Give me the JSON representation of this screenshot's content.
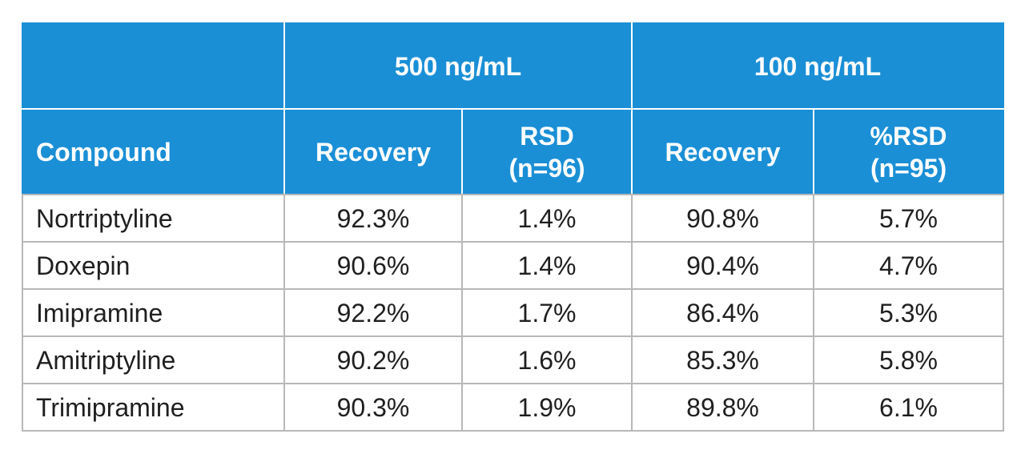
{
  "table": {
    "group_headers": {
      "blank": "",
      "g1": "500 ng/mL",
      "g2": "100 ng/mL"
    },
    "sub_headers": {
      "compound": "Compound",
      "recovery_1": "Recovery",
      "rsd_1_line1": "RSD",
      "rsd_1_line2": "(n=96)",
      "recovery_2": "Recovery",
      "rsd_2_line1": "%RSD",
      "rsd_2_line2": "(n=95)"
    },
    "rows": [
      {
        "compound": "Nortriptyline",
        "rec1": "92.3%",
        "rsd1": "1.4%",
        "rec2": "90.8%",
        "rsd2": "5.7%"
      },
      {
        "compound": "Doxepin",
        "rec1": "90.6%",
        "rsd1": "1.4%",
        "rec2": "90.4%",
        "rsd2": "4.7%"
      },
      {
        "compound": "Imipramine",
        "rec1": "92.2%",
        "rsd1": "1.7%",
        "rec2": "86.4%",
        "rsd2": "5.3%"
      },
      {
        "compound": "Amitriptyline",
        "rec1": "90.2%",
        "rsd1": "1.6%",
        "rec2": "85.3%",
        "rsd2": "5.8%"
      },
      {
        "compound": "Trimipramine",
        "rec1": "90.3%",
        "rsd1": "1.9%",
        "rec2": "89.8%",
        "rsd2": "6.1%"
      }
    ]
  },
  "colors": {
    "header_bg": "#1a8fd6",
    "header_text": "#ffffff",
    "border": "#b8b8b8",
    "body_text": "#1f1f1f"
  }
}
